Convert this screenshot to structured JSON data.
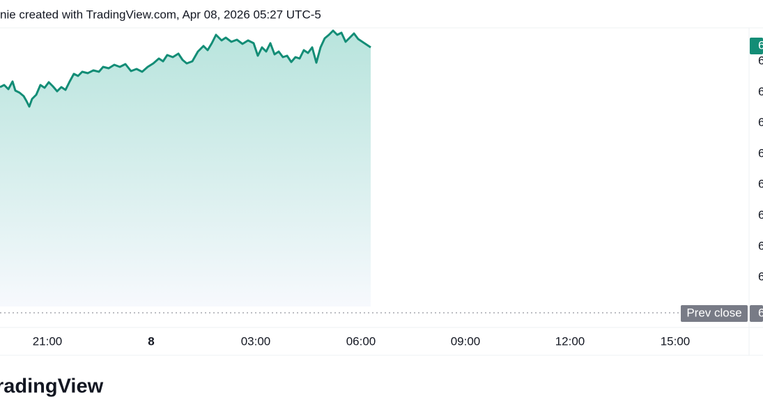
{
  "header": {
    "text": "nie created with TradingView.com, Apr 08, 2026 05:27 UTC-5"
  },
  "price_axis": {
    "current_badge": "6",
    "labels": [
      "6",
      "6",
      "6",
      "6",
      "6",
      "6",
      "6",
      "6"
    ]
  },
  "prev_close": {
    "label": "Prev close",
    "value": "6"
  },
  "time_axis": {
    "labels": [
      "21:00",
      "8",
      "03:00",
      "06:00",
      "09:00",
      "12:00",
      "15:00"
    ]
  },
  "logo": {
    "text": "radingView"
  }
}
